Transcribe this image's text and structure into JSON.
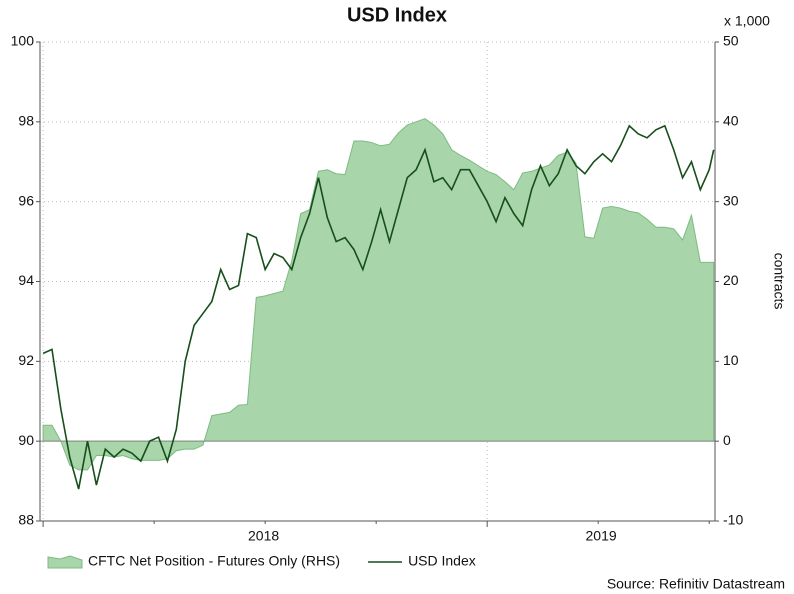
{
  "chart_data": {
    "type": "line",
    "title": "USD Index",
    "x": [
      2018.0,
      2018.02,
      2018.04,
      2018.06,
      2018.08,
      2018.1,
      2018.12,
      2018.14,
      2018.16,
      2018.18,
      2018.2,
      2018.22,
      2018.24,
      2018.26,
      2018.28,
      2018.3,
      2018.32,
      2018.34,
      2018.36,
      2018.38,
      2018.4,
      2018.42,
      2018.44,
      2018.46,
      2018.48,
      2018.5,
      2018.52,
      2018.54,
      2018.56,
      2018.58,
      2018.6,
      2018.62,
      2018.64,
      2018.66,
      2018.68,
      2018.7,
      2018.72,
      2018.74,
      2018.76,
      2018.78,
      2018.8,
      2018.82,
      2018.84,
      2018.86,
      2018.88,
      2018.9,
      2018.92,
      2018.94,
      2018.96,
      2018.98,
      2019.0,
      2019.02,
      2019.04,
      2019.06,
      2019.08,
      2019.1,
      2019.12,
      2019.14,
      2019.16,
      2019.18,
      2019.2,
      2019.22,
      2019.24,
      2019.26,
      2019.28,
      2019.3,
      2019.32,
      2019.34,
      2019.36,
      2019.38,
      2019.4,
      2019.42,
      2019.44,
      2019.46,
      2019.48,
      2019.5,
      2019.51
    ],
    "xlim": [
      2017.993,
      2019.513
    ],
    "xticks": [
      2018,
      2019
    ],
    "x_minor_ticks": [
      2018.25,
      2018.5,
      2018.75,
      2019.25,
      2019.5
    ],
    "ylim": [
      88,
      100
    ],
    "yticks": [
      88,
      90,
      92,
      94,
      96,
      98,
      100
    ],
    "y2lim": [
      -10,
      50
    ],
    "y2ticks": [
      -10,
      0,
      10,
      20,
      30,
      40,
      50
    ],
    "y2_unit": "x 1,000",
    "y2label": "contracts",
    "grid": true,
    "legend": "bottom",
    "source": "Source: Refinitiv Datastream",
    "series": [
      {
        "name": "CFTC Net Position - Futures Only (RHS)",
        "type": "area",
        "axis": "y2",
        "color": "#a8d5aa",
        "values": [
          2.0,
          2.0,
          0.0,
          -3.0,
          -3.6,
          -3.6,
          -1.8,
          -1.8,
          -2.0,
          -1.8,
          -2.2,
          -2.4,
          -2.4,
          -2.4,
          -2.2,
          -1.2,
          -1.0,
          -1.0,
          -0.5,
          3.2,
          3.4,
          3.6,
          4.5,
          4.6,
          18.0,
          18.2,
          18.5,
          18.8,
          22.6,
          28.5,
          29.0,
          33.8,
          34.0,
          33.5,
          33.4,
          37.6,
          37.6,
          37.4,
          37.0,
          37.2,
          38.6,
          39.6,
          40.0,
          40.4,
          39.6,
          38.5,
          36.5,
          35.8,
          35.2,
          34.5,
          33.8,
          33.4,
          32.5,
          31.5,
          33.6,
          33.8,
          34.2,
          34.6,
          35.8,
          36.2,
          34.8,
          25.6,
          25.4,
          29.2,
          29.4,
          29.2,
          28.8,
          28.6,
          27.8,
          26.8,
          26.8,
          26.6,
          25.2,
          28.3,
          22.4,
          22.4,
          22.4
        ]
      },
      {
        "name": "USD Index",
        "type": "line",
        "color": "#174f1c",
        "values": [
          92.2,
          92.3,
          90.8,
          89.6,
          88.8,
          90.0,
          88.9,
          89.8,
          89.6,
          89.8,
          89.7,
          89.5,
          90.0,
          90.1,
          89.5,
          90.3,
          92.0,
          92.9,
          93.2,
          93.5,
          94.3,
          93.8,
          93.9,
          95.2,
          95.1,
          94.3,
          94.7,
          94.6,
          94.3,
          95.1,
          95.7,
          96.6,
          95.6,
          95.0,
          95.1,
          94.8,
          94.3,
          95.0,
          95.8,
          95.0,
          95.8,
          96.6,
          96.8,
          97.3,
          96.5,
          96.6,
          96.3,
          96.8,
          96.8,
          96.4,
          96.0,
          95.5,
          96.1,
          95.7,
          95.4,
          96.3,
          96.9,
          96.4,
          96.7,
          97.3,
          96.9,
          96.7,
          97.0,
          97.2,
          97.0,
          97.4,
          97.9,
          97.7,
          97.6,
          97.8,
          97.9,
          97.3,
          96.6,
          97.0,
          96.3,
          96.8,
          97.3
        ]
      }
    ]
  }
}
